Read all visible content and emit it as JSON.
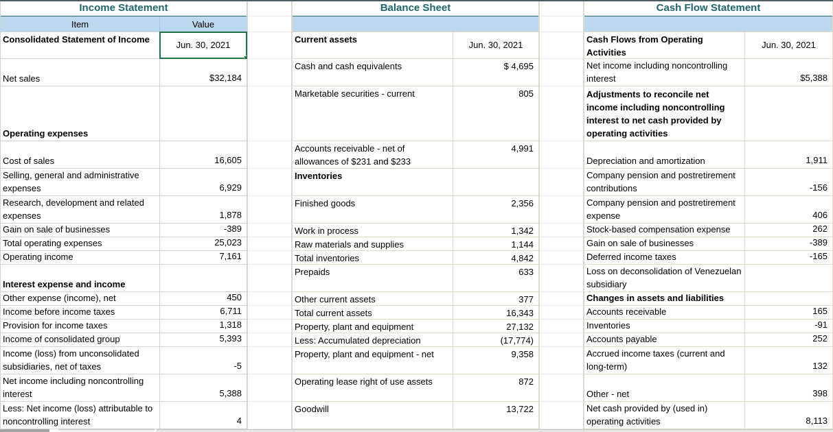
{
  "view": {
    "description": "Spreadsheet with three financial statement tables",
    "date_header": "Jun. 30, 2021"
  },
  "colors": {
    "title_text": "#20666b",
    "header_band": "#bdd7ee",
    "selection_border": "#217346"
  },
  "statements": [
    {
      "title": "Income Statement",
      "columns": {
        "item": "Item",
        "value": "Value"
      },
      "rows": [
        {
          "label": "Consolidated Statement of Income",
          "value": "Jun. 30, 2021",
          "header": true,
          "date": true,
          "selected": true
        },
        {
          "label": "Net sales",
          "value": "$32,184"
        },
        {
          "label": "Operating expenses",
          "value": "",
          "header": true
        },
        {
          "label": "Cost of sales",
          "value": "16,605"
        },
        {
          "label": "Selling, general and administrative expenses",
          "value": "6,929"
        },
        {
          "label": "Research, development and related expenses",
          "value": "1,878"
        },
        {
          "label": "Gain on sale of businesses",
          "value": "-389"
        },
        {
          "label": "Total operating expenses",
          "value": "25,023"
        },
        {
          "label": "Operating income",
          "value": "7,161"
        },
        {
          "label": "Interest expense and income",
          "value": "",
          "header": true
        },
        {
          "label": "Other expense (income), net",
          "value": "450"
        },
        {
          "label": "Income before income taxes",
          "value": "6,711"
        },
        {
          "label": "Provision for income taxes",
          "value": "1,318"
        },
        {
          "label": "Income of consolidated group",
          "value": "5,393"
        },
        {
          "label": "Income (loss) from unconsolidated subsidiaries, net of taxes",
          "value": "-5"
        },
        {
          "label": "Net income including noncontrolling interest",
          "value": "5,388"
        },
        {
          "label": "Less: Net income (loss) attributable to noncontrolling interest",
          "value": "4"
        }
      ]
    },
    {
      "title": "Balance Sheet",
      "columns": {
        "item": "",
        "value": ""
      },
      "rows": [
        {
          "label": "Current assets",
          "value": "Jun. 30, 2021",
          "header": true,
          "date": true
        },
        {
          "label": "Cash and cash equivalents",
          "value": "$ 4,695"
        },
        {
          "label": "Marketable securities - current",
          "value": "805"
        },
        {
          "label": "Accounts receivable - net of allowances of $231 and $233",
          "value": "4,991"
        },
        {
          "label": "Inventories",
          "value": "",
          "header": true
        },
        {
          "label": "Finished goods",
          "value": "2,356"
        },
        {
          "label": "Work in process",
          "value": "1,342"
        },
        {
          "label": "Raw materials and supplies",
          "value": "1,144"
        },
        {
          "label": "Total inventories",
          "value": "4,842"
        },
        {
          "label": "Prepaids",
          "value": "633"
        },
        {
          "label": "Other current assets",
          "value": "377"
        },
        {
          "label": "Total current assets",
          "value": "16,343"
        },
        {
          "label": "Property, plant and equipment",
          "value": "27,132"
        },
        {
          "label": "Less: Accumulated depreciation",
          "value": "(17,774)"
        },
        {
          "label": "Property, plant and equipment - net",
          "value": "9,358"
        },
        {
          "label": "Operating lease right of use assets",
          "value": "872"
        },
        {
          "label": "Goodwill",
          "value": "13,722"
        }
      ]
    },
    {
      "title": "Cash Flow Statement",
      "columns": {
        "item": "",
        "value": ""
      },
      "rows": [
        {
          "label": "Cash Flows from Operating Activities",
          "value": "Jun. 30, 2021",
          "header": true,
          "date": true
        },
        {
          "label": "Net income including noncontrolling interest",
          "value": "$5,388"
        },
        {
          "label": "Adjustments to reconcile net income including noncontrolling interest to net cash provided by operating activities",
          "value": "",
          "header": true
        },
        {
          "label": "Depreciation and amortization",
          "value": "1,911"
        },
        {
          "label": "Company pension and postretirement contributions",
          "value": "-156"
        },
        {
          "label": "Company pension and postretirement expense",
          "value": "406"
        },
        {
          "label": "Stock-based compensation expense",
          "value": "262"
        },
        {
          "label": "Gain on sale of businesses",
          "value": "-389"
        },
        {
          "label": "Deferred income taxes",
          "value": "-165"
        },
        {
          "label": "Loss on deconsolidation of Venezuelan subsidiary",
          "value": ""
        },
        {
          "label": "Changes in assets and liabilities",
          "value": "",
          "header": true
        },
        {
          "label": "Accounts receivable",
          "value": "165"
        },
        {
          "label": "Inventories",
          "value": "-91"
        },
        {
          "label": "Accounts payable",
          "value": "252"
        },
        {
          "label": "Accrued income taxes (current and long-term)",
          "value": "132"
        },
        {
          "label": "Other - net",
          "value": "398"
        },
        {
          "label": "Net cash provided by (used in) operating activities",
          "value": "8,113"
        }
      ]
    }
  ]
}
